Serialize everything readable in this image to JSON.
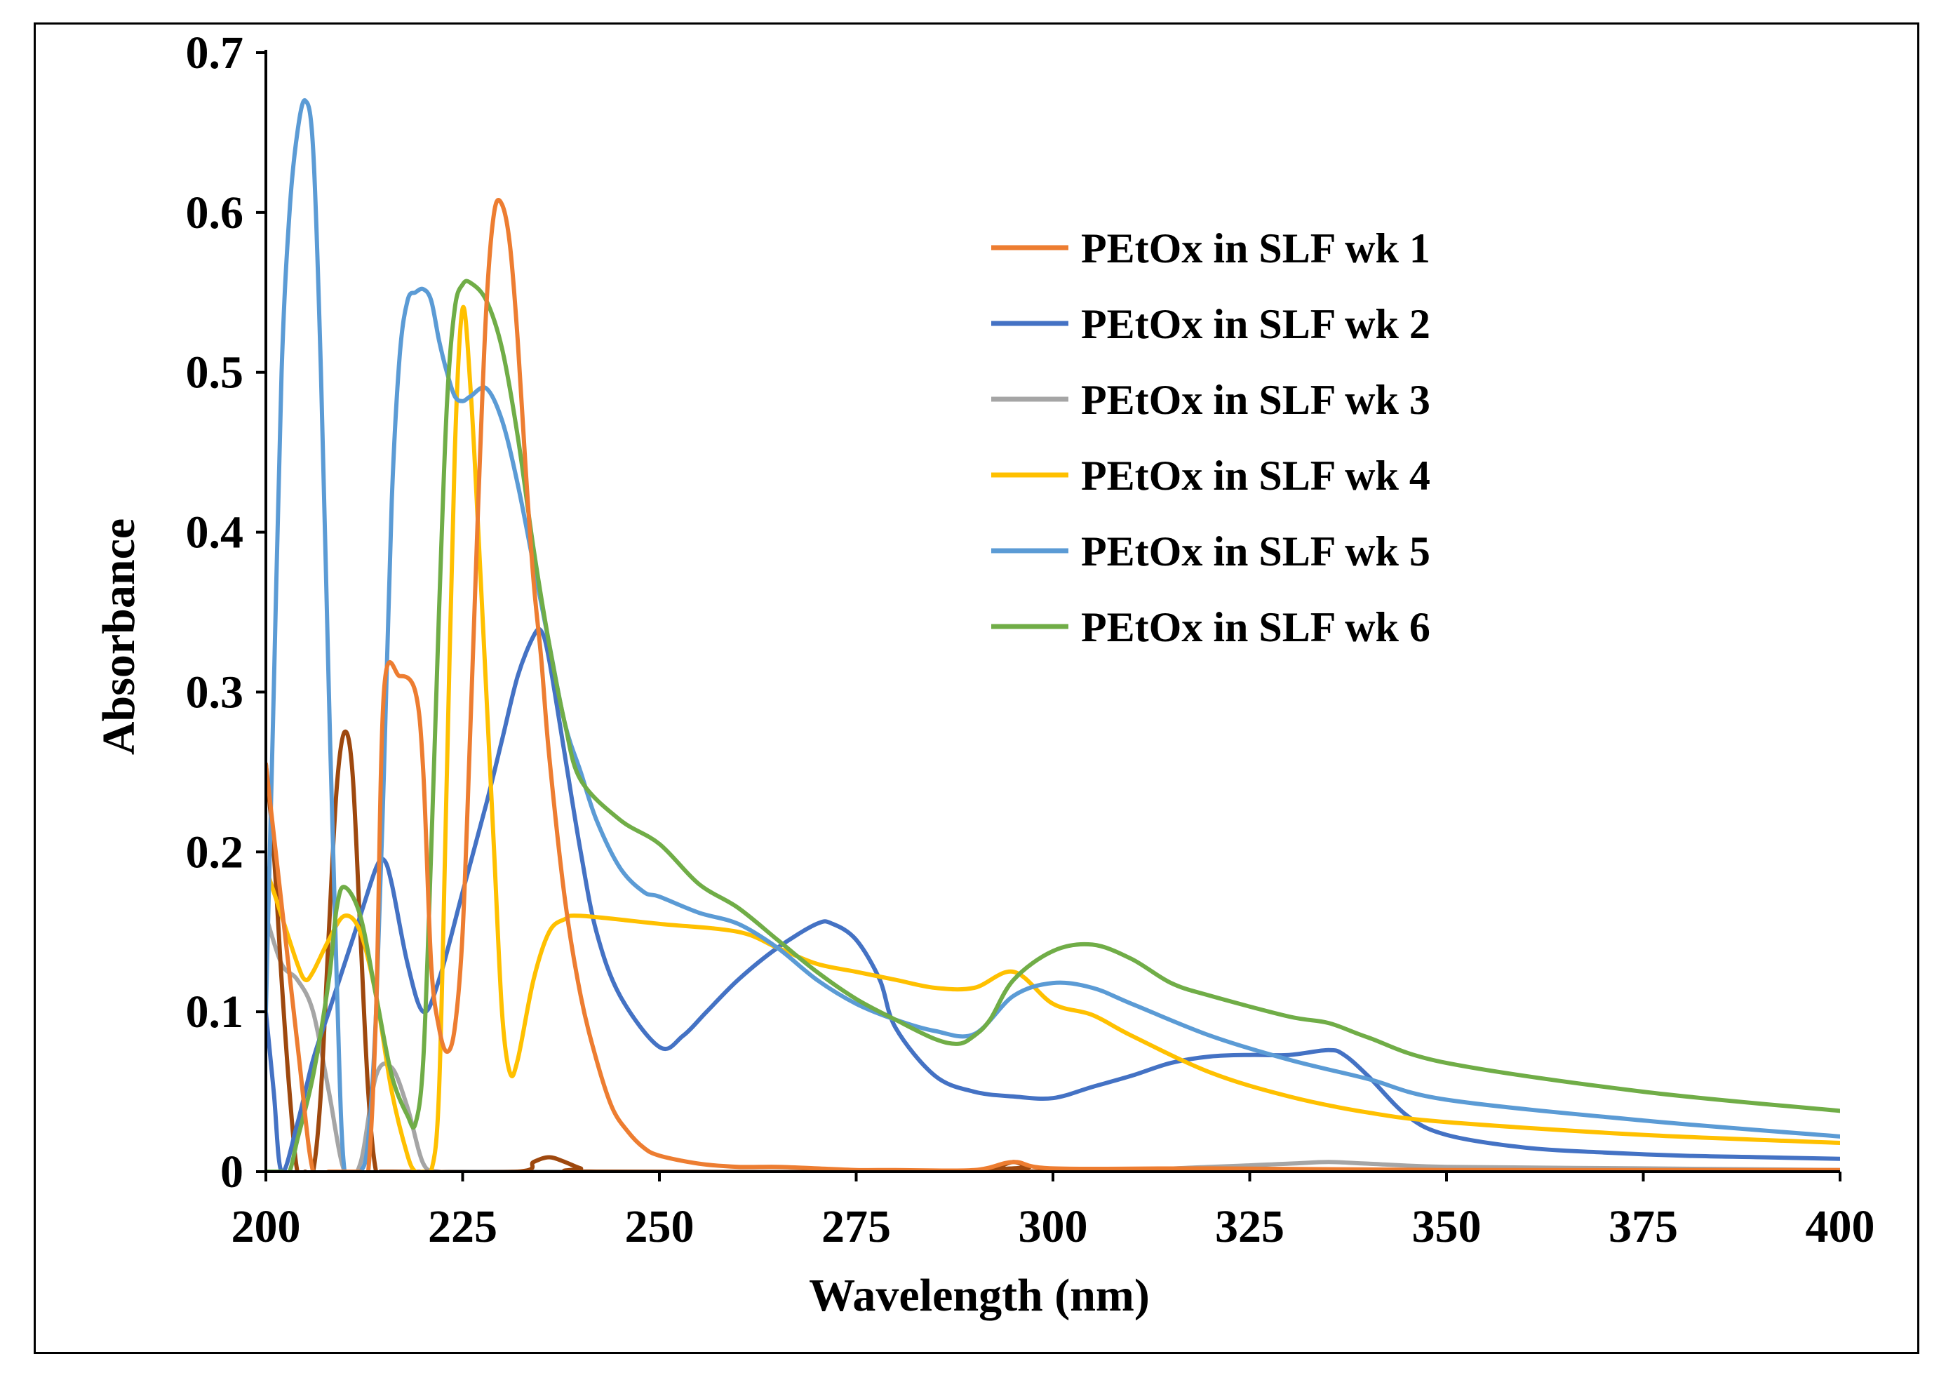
{
  "chart_data": {
    "type": "line",
    "title": "",
    "xlabel": "Wavelength  (nm)",
    "ylabel": "Absorbance",
    "xlim": [
      200,
      400
    ],
    "ylim": [
      0,
      0.7
    ],
    "xticks": [
      200,
      225,
      250,
      275,
      300,
      325,
      350,
      375,
      400
    ],
    "yticks": [
      0,
      0.1,
      0.2,
      0.3,
      0.4,
      0.5,
      0.6,
      0.7
    ],
    "xtick_labels": [
      "200",
      "225",
      "250",
      "275",
      "300",
      "325",
      "350",
      "375",
      "400"
    ],
    "ytick_labels": [
      "0",
      "0.1",
      "0.2",
      "0.3",
      "0.4",
      "0.5",
      "0.6",
      "0.7"
    ],
    "grid": false,
    "legend_position": "right",
    "series": [
      {
        "name": "PEtOx in SLF wk 1",
        "color": "#ED7D31",
        "in_legend": true,
        "x": [
          200,
          204,
          206,
          208,
          210,
          212,
          213,
          214,
          215,
          217,
          219,
          220,
          221,
          222,
          223,
          224,
          225,
          226,
          227,
          228,
          229,
          230,
          231,
          232,
          233,
          234,
          235,
          236,
          238,
          240,
          242,
          244,
          246,
          248,
          250,
          255,
          260,
          265,
          270,
          275,
          280,
          290,
          295,
          300,
          320,
          350,
          400
        ],
        "y": [
          0.255,
          0.08,
          0,
          0,
          0,
          0,
          0,
          0.1,
          0.3,
          0.31,
          0.3,
          0.25,
          0.13,
          0.09,
          0.075,
          0.09,
          0.15,
          0.28,
          0.42,
          0.54,
          0.6,
          0.605,
          0.58,
          0.52,
          0.44,
          0.37,
          0.32,
          0.26,
          0.17,
          0.11,
          0.07,
          0.04,
          0.025,
          0.015,
          0.01,
          0.005,
          0.003,
          0.003,
          0.002,
          0.001,
          0.001,
          0.001,
          0.006,
          0.002,
          0.002,
          0.001,
          0.001
        ]
      },
      {
        "name": "PEtOx in SLF wk 2",
        "color": "#4472C4",
        "in_legend": true,
        "x": [
          200,
          201,
          202,
          204,
          206,
          208,
          210,
          212,
          214,
          215,
          216,
          218,
          220,
          222,
          225,
          228,
          230,
          232,
          234,
          235,
          236,
          238,
          240,
          242,
          245,
          250,
          253,
          256,
          260,
          265,
          270,
          272,
          275,
          278,
          280,
          285,
          290,
          295,
          300,
          305,
          310,
          315,
          320,
          325,
          330,
          335,
          337,
          340,
          345,
          350,
          360,
          370,
          380,
          390,
          400
        ],
        "y": [
          0.1,
          0.05,
          0,
          0.03,
          0.07,
          0.1,
          0.13,
          0.16,
          0.19,
          0.195,
          0.18,
          0.13,
          0.1,
          0.12,
          0.175,
          0.23,
          0.27,
          0.31,
          0.335,
          0.338,
          0.32,
          0.26,
          0.2,
          0.15,
          0.11,
          0.078,
          0.085,
          0.1,
          0.12,
          0.14,
          0.155,
          0.155,
          0.145,
          0.12,
          0.09,
          0.06,
          0.05,
          0.047,
          0.046,
          0.053,
          0.06,
          0.068,
          0.072,
          0.073,
          0.073,
          0.076,
          0.073,
          0.06,
          0.035,
          0.023,
          0.015,
          0.012,
          0.01,
          0.009,
          0.008
        ]
      },
      {
        "name": "PEtOx in SLF wk 3",
        "color": "#A5A5A5",
        "in_legend": true,
        "x": [
          200,
          202,
          204,
          206,
          208,
          210,
          212,
          214,
          216,
          218,
          220,
          222,
          225,
          250,
          300,
          320,
          330,
          335,
          340,
          350,
          375,
          400
        ],
        "y": [
          0.16,
          0.13,
          0.12,
          0.1,
          0.05,
          0,
          0.005,
          0.06,
          0.065,
          0.04,
          0.005,
          0,
          0,
          0,
          0,
          0.003,
          0.005,
          0.006,
          0.005,
          0.003,
          0.002,
          0.001
        ]
      },
      {
        "name": "PEtOx in SLF wk 4",
        "color": "#FFC000",
        "in_legend": true,
        "x": [
          200,
          202,
          204,
          205,
          206,
          208,
          210,
          212,
          214,
          216,
          218,
          219,
          220,
          221,
          222,
          223,
          224,
          225,
          226,
          227,
          228,
          229,
          230,
          231,
          232,
          234,
          236,
          238,
          240,
          250,
          260,
          265,
          270,
          275,
          280,
          285,
          290,
          295,
          300,
          305,
          310,
          320,
          330,
          340,
          350,
          375,
          400
        ],
        "y": [
          0.19,
          0.16,
          0.13,
          0.12,
          0.125,
          0.145,
          0.16,
          0.15,
          0.11,
          0.05,
          0.01,
          0,
          0,
          0,
          0.05,
          0.25,
          0.45,
          0.54,
          0.49,
          0.4,
          0.3,
          0.2,
          0.1,
          0.062,
          0.07,
          0.12,
          0.15,
          0.158,
          0.16,
          0.155,
          0.15,
          0.14,
          0.13,
          0.125,
          0.12,
          0.115,
          0.115,
          0.125,
          0.105,
          0.098,
          0.085,
          0.062,
          0.047,
          0.037,
          0.031,
          0.023,
          0.018
        ]
      },
      {
        "name": "PEtOx in SLF wk 5",
        "color": "#5B9BD5",
        "in_legend": true,
        "x": [
          200,
          201,
          202,
          203,
          204,
          205,
          206,
          207,
          208,
          209,
          210,
          212,
          213,
          214,
          215,
          216,
          217,
          218,
          219,
          220,
          221,
          222,
          223,
          224,
          225,
          226,
          228,
          230,
          232,
          234,
          236,
          238,
          240,
          242,
          245,
          248,
          250,
          255,
          260,
          265,
          270,
          275,
          280,
          285,
          290,
          295,
          300,
          305,
          310,
          320,
          330,
          340,
          350,
          375,
          400
        ],
        "y": [
          0.1,
          0.3,
          0.5,
          0.6,
          0.65,
          0.67,
          0.64,
          0.5,
          0.3,
          0.12,
          0,
          0,
          0.02,
          0.1,
          0.25,
          0.42,
          0.51,
          0.545,
          0.55,
          0.552,
          0.545,
          0.52,
          0.5,
          0.485,
          0.482,
          0.485,
          0.49,
          0.47,
          0.43,
          0.38,
          0.33,
          0.28,
          0.25,
          0.22,
          0.19,
          0.175,
          0.172,
          0.162,
          0.155,
          0.14,
          0.12,
          0.105,
          0.095,
          0.088,
          0.086,
          0.11,
          0.118,
          0.115,
          0.105,
          0.085,
          0.07,
          0.058,
          0.045,
          0.032,
          0.022
        ]
      },
      {
        "name": "PEtOx in SLF wk 6",
        "color": "#70AD47",
        "in_legend": true,
        "x": [
          200,
          202,
          203,
          204,
          206,
          208,
          209,
          210,
          212,
          214,
          216,
          218,
          219,
          220,
          221,
          222,
          223,
          224,
          225,
          226,
          228,
          230,
          232,
          234,
          236,
          238,
          240,
          245,
          250,
          255,
          260,
          265,
          270,
          275,
          280,
          285,
          288,
          290,
          292,
          295,
          300,
          305,
          310,
          315,
          320,
          330,
          335,
          340,
          350,
          375,
          400
        ],
        "y": [
          0,
          0,
          0,
          0.02,
          0.06,
          0.12,
          0.165,
          0.178,
          0.16,
          0.11,
          0.06,
          0.035,
          0.03,
          0.07,
          0.2,
          0.35,
          0.48,
          0.54,
          0.555,
          0.556,
          0.545,
          0.515,
          0.46,
          0.39,
          0.33,
          0.28,
          0.245,
          0.22,
          0.205,
          0.18,
          0.165,
          0.145,
          0.125,
          0.108,
          0.095,
          0.083,
          0.08,
          0.085,
          0.095,
          0.12,
          0.138,
          0.142,
          0.133,
          0.118,
          0.11,
          0.097,
          0.093,
          0.084,
          0.068,
          0.05,
          0.038
        ]
      },
      {
        "name": "",
        "color": "#9E480E",
        "in_legend": false,
        "x": [
          200,
          201,
          202,
          203,
          204,
          205,
          206,
          207,
          208,
          209,
          210,
          211,
          212,
          213,
          214,
          215,
          216,
          232,
          234,
          236,
          238,
          240,
          242,
          290,
          293,
          295,
          297,
          300,
          400
        ],
        "y": [
          0.255,
          0.2,
          0.12,
          0.05,
          0,
          0,
          0,
          0.05,
          0.15,
          0.24,
          0.275,
          0.25,
          0.15,
          0.05,
          0,
          0,
          0,
          0,
          0.006,
          0.009,
          0.006,
          0.002,
          0,
          0,
          0.003,
          0.006,
          0.003,
          0,
          0
        ]
      }
    ]
  }
}
